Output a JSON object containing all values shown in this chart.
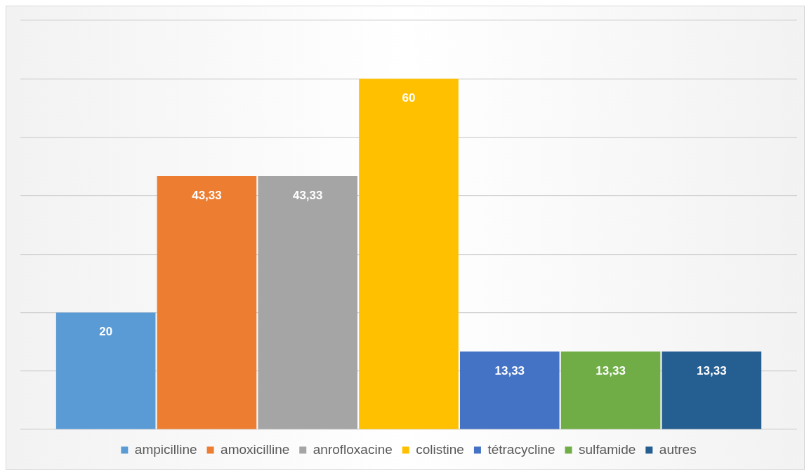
{
  "chart_data": {
    "type": "bar",
    "categories": [
      null
    ],
    "series": [
      {
        "name": "ampicilline",
        "color": "#5b9bd5",
        "values": [
          20
        ],
        "value_labels": [
          "20"
        ]
      },
      {
        "name": "amoxicilline",
        "color": "#ed7d31",
        "values": [
          43.33
        ],
        "value_labels": [
          "43,33"
        ]
      },
      {
        "name": "anrofloxacine",
        "color": "#a5a5a5",
        "values": [
          43.33
        ],
        "value_labels": [
          "43,33"
        ]
      },
      {
        "name": "colistine",
        "color": "#ffc000",
        "values": [
          60
        ],
        "value_labels": [
          "60"
        ]
      },
      {
        "name": "tétracycline",
        "color": "#4472c4",
        "values": [
          13.33
        ],
        "value_labels": [
          "13,33"
        ]
      },
      {
        "name": "sulfamide",
        "color": "#70ad47",
        "values": [
          13.33
        ],
        "value_labels": [
          "13,33"
        ]
      },
      {
        "name": "autres",
        "color": "#255e91",
        "values": [
          13.33
        ],
        "value_labels": [
          "13,33"
        ]
      }
    ],
    "ylim": [
      0,
      70
    ],
    "yticks": [
      0,
      10,
      20,
      30,
      40,
      50,
      60,
      70
    ],
    "grid": "y",
    "tick_labels": false,
    "legend": "bottom"
  }
}
